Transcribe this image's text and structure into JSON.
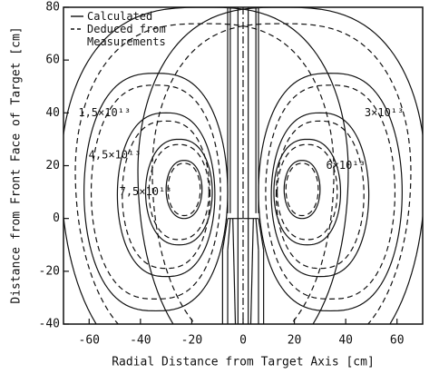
{
  "chart_data": {
    "type": "contour",
    "xlabel": "Radial Distance from Target Axis [cm]",
    "ylabel": "Distance from Front Face of Target [cm]",
    "xlim": [
      -70,
      70
    ],
    "ylim": [
      -40,
      80
    ],
    "xticks": [
      -60,
      -40,
      -20,
      0,
      20,
      40,
      60
    ],
    "yticks": [
      -40,
      -20,
      0,
      20,
      40,
      60,
      80
    ],
    "color": "#111111",
    "series": [
      {
        "name": "Calculated",
        "style": "solid"
      },
      {
        "name": "Deduced from Measurements",
        "style": "dashed"
      }
    ],
    "levels": [
      {
        "value": 15000000000000,
        "label": "1,5×10¹³"
      },
      {
        "value": 30000000000000,
        "label": "3×10¹³"
      },
      {
        "value": 45000000000000,
        "label": "4,5×10¹³"
      },
      {
        "value": 60000000000000,
        "label": "6×10¹³"
      },
      {
        "value": 75000000000000,
        "label": "7,5×10¹³"
      }
    ]
  }
}
